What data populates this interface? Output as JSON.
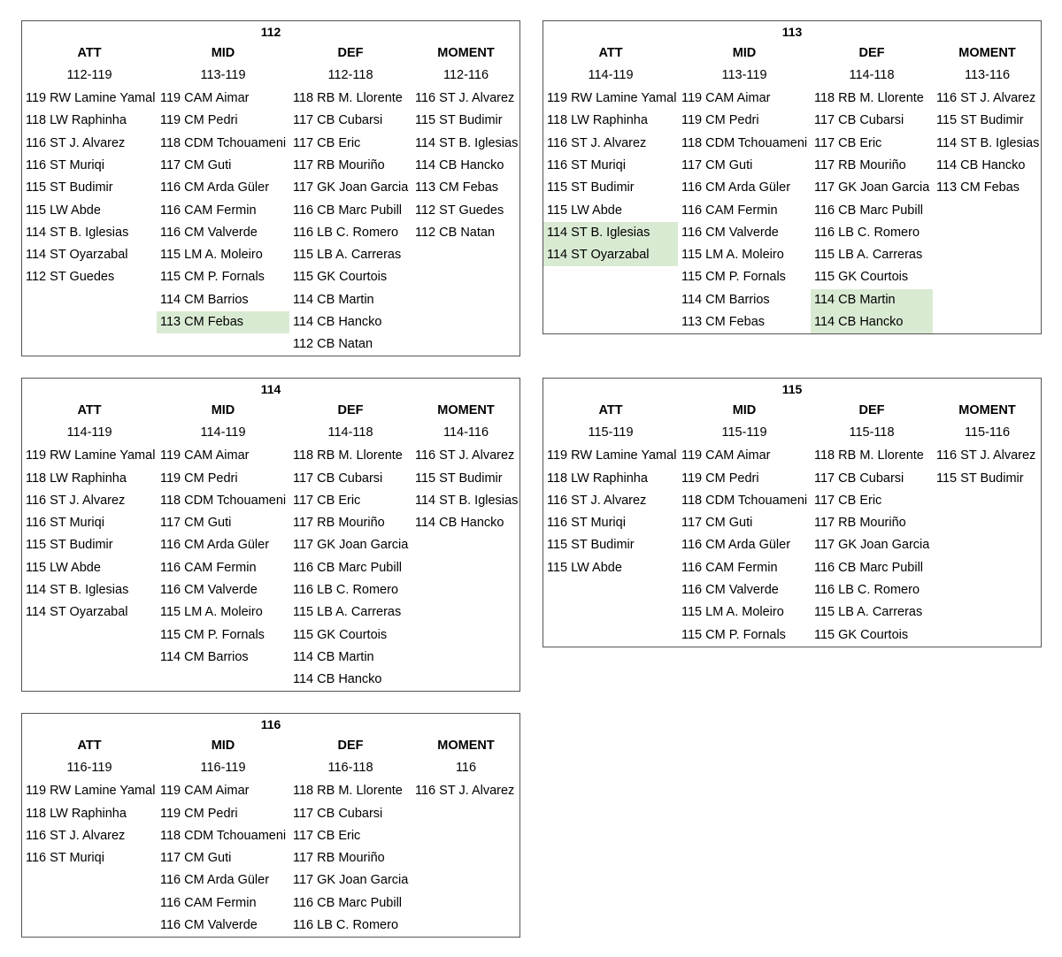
{
  "panels": [
    {
      "title": "112",
      "columns": [
        {
          "header": "ATT",
          "range": "112-119",
          "items": [
            "119 RW Lamine Yamal",
            "118 LW Raphinha",
            "116 ST J. Alvarez",
            "116 ST Muriqi",
            "115 ST Budimir",
            "115 LW Abde",
            "114 ST B. Iglesias",
            "114 ST Oyarzabal",
            "112 ST Guedes"
          ]
        },
        {
          "header": "MID",
          "range": "113-119",
          "items": [
            "119 CAM Aimar",
            "119 CM Pedri",
            "118 CDM Tchouameni",
            "117 CM Guti",
            "116 CM Arda Güler",
            "116 CAM Fermin",
            "116 CM Valverde",
            "115 LM A. Moleiro",
            "115 CM P. Fornals",
            "114 CM Barrios",
            "113 CM Febas"
          ],
          "highlighted": [
            10
          ]
        },
        {
          "header": "DEF",
          "range": "112-118",
          "items": [
            "118 RB M. Llorente",
            "117 CB Cubarsi",
            "117 CB Eric",
            "117 RB Mouriño",
            "117 GK Joan Garcia",
            "116 CB Marc Pubill",
            "116 LB C. Romero",
            "115 LB A. Carreras",
            "115 GK Courtois",
            "114 CB Martin",
            "114 CB Hancko",
            "112 CB Natan"
          ]
        },
        {
          "header": "MOMENT",
          "range": "112-116",
          "items": [
            "116 ST J. Alvarez",
            "115 ST Budimir",
            "114 ST B. Iglesias",
            "114 CB Hancko",
            "113 CM Febas",
            "112 ST Guedes",
            "112 CB Natan"
          ]
        }
      ]
    },
    {
      "title": "113",
      "columns": [
        {
          "header": "ATT",
          "range": "114-119",
          "items": [
            "119 RW Lamine Yamal",
            "118 LW Raphinha",
            "116 ST J. Alvarez",
            "116 ST Muriqi",
            "115 ST Budimir",
            "115 LW Abde",
            "114 ST B. Iglesias",
            "114 ST Oyarzabal"
          ],
          "highlighted": [
            6,
            7
          ]
        },
        {
          "header": "MID",
          "range": "113-119",
          "items": [
            "119 CAM Aimar",
            "119 CM Pedri",
            "118 CDM Tchouameni",
            "117 CM Guti",
            "116 CM Arda Güler",
            "116 CAM Fermin",
            "116 CM Valverde",
            "115 LM A. Moleiro",
            "115 CM P. Fornals",
            "114 CM Barrios",
            "113 CM Febas"
          ]
        },
        {
          "header": "DEF",
          "range": "114-118",
          "items": [
            "118 RB M. Llorente",
            "117 CB Cubarsi",
            "117 CB Eric",
            "117 RB Mouriño",
            "117 GK Joan Garcia",
            "116 CB Marc Pubill",
            "116 LB C. Romero",
            "115 LB A. Carreras",
            "115 GK Courtois",
            "114 CB Martin",
            "114 CB Hancko"
          ],
          "highlighted": [
            9,
            10
          ]
        },
        {
          "header": "MOMENT",
          "range": "113-116",
          "items": [
            "116 ST J. Alvarez",
            "115 ST Budimir",
            "114 ST B. Iglesias",
            "114 CB Hancko",
            "113 CM Febas"
          ]
        }
      ]
    },
    {
      "title": "114",
      "columns": [
        {
          "header": "ATT",
          "range": "114-119",
          "items": [
            "119 RW Lamine Yamal",
            "118 LW Raphinha",
            "116 ST J. Alvarez",
            "116 ST Muriqi",
            "115 ST Budimir",
            "115 LW Abde",
            "114 ST B. Iglesias",
            "114 ST Oyarzabal"
          ]
        },
        {
          "header": "MID",
          "range": "114-119",
          "items": [
            "119 CAM Aimar",
            "119 CM Pedri",
            "118 CDM Tchouameni",
            "117 CM Guti",
            "116 CM Arda Güler",
            "116 CAM Fermin",
            "116 CM Valverde",
            "115 LM A. Moleiro",
            "115 CM P. Fornals",
            "114 CM Barrios"
          ]
        },
        {
          "header": "DEF",
          "range": "114-118",
          "items": [
            "118 RB M. Llorente",
            "117 CB Cubarsi",
            "117 CB Eric",
            "117 RB Mouriño",
            "117 GK Joan Garcia",
            "116 CB Marc Pubill",
            "116 LB C. Romero",
            "115 LB A. Carreras",
            "115 GK Courtois",
            "114 CB Martin",
            "114 CB Hancko"
          ]
        },
        {
          "header": "MOMENT",
          "range": "114-116",
          "items": [
            "116 ST J. Alvarez",
            "115 ST Budimir",
            "114 ST B. Iglesias",
            "114 CB Hancko"
          ]
        }
      ]
    },
    {
      "title": "115",
      "columns": [
        {
          "header": "ATT",
          "range": "115-119",
          "items": [
            "119 RW Lamine Yamal",
            "118 LW Raphinha",
            "116 ST J. Alvarez",
            "116 ST Muriqi",
            "115 ST Budimir",
            "115 LW Abde"
          ]
        },
        {
          "header": "MID",
          "range": "115-119",
          "items": [
            "119 CAM Aimar",
            "119 CM Pedri",
            "118 CDM Tchouameni",
            "117 CM Guti",
            "116 CM Arda Güler",
            "116 CAM Fermin",
            "116 CM Valverde",
            "115 LM A. Moleiro",
            "115 CM P. Fornals"
          ]
        },
        {
          "header": "DEF",
          "range": "115-118",
          "items": [
            "118 RB M. Llorente",
            "117 CB Cubarsi",
            "117 CB Eric",
            "117 RB Mouriño",
            "117 GK Joan Garcia",
            "116 CB Marc Pubill",
            "116 LB C. Romero",
            "115 LB A. Carreras",
            "115 GK Courtois"
          ]
        },
        {
          "header": "MOMENT",
          "range": "115-116",
          "items": [
            "116 ST J. Alvarez",
            "115 ST Budimir"
          ]
        }
      ]
    },
    {
      "title": "116",
      "columns": [
        {
          "header": "ATT",
          "range": "116-119",
          "items": [
            "119 RW Lamine Yamal",
            "118 LW Raphinha",
            "116 ST J. Alvarez",
            "116 ST Muriqi"
          ]
        },
        {
          "header": "MID",
          "range": "116-119",
          "items": [
            "119 CAM Aimar",
            "119 CM Pedri",
            "118 CDM Tchouameni",
            "117 CM Guti",
            "116 CM Arda Güler",
            "116 CAM Fermin",
            "116 CM Valverde"
          ]
        },
        {
          "header": "DEF",
          "range": "116-118",
          "items": [
            "118 RB M. Llorente",
            "117 CB Cubarsi",
            "117 CB Eric",
            "117 RB Mouriño",
            "117 GK Joan Garcia",
            "116 CB Marc Pubill",
            "116 LB C. Romero"
          ]
        },
        {
          "header": "MOMENT",
          "range": "116",
          "items": [
            "116 ST J. Alvarez"
          ]
        }
      ]
    }
  ]
}
